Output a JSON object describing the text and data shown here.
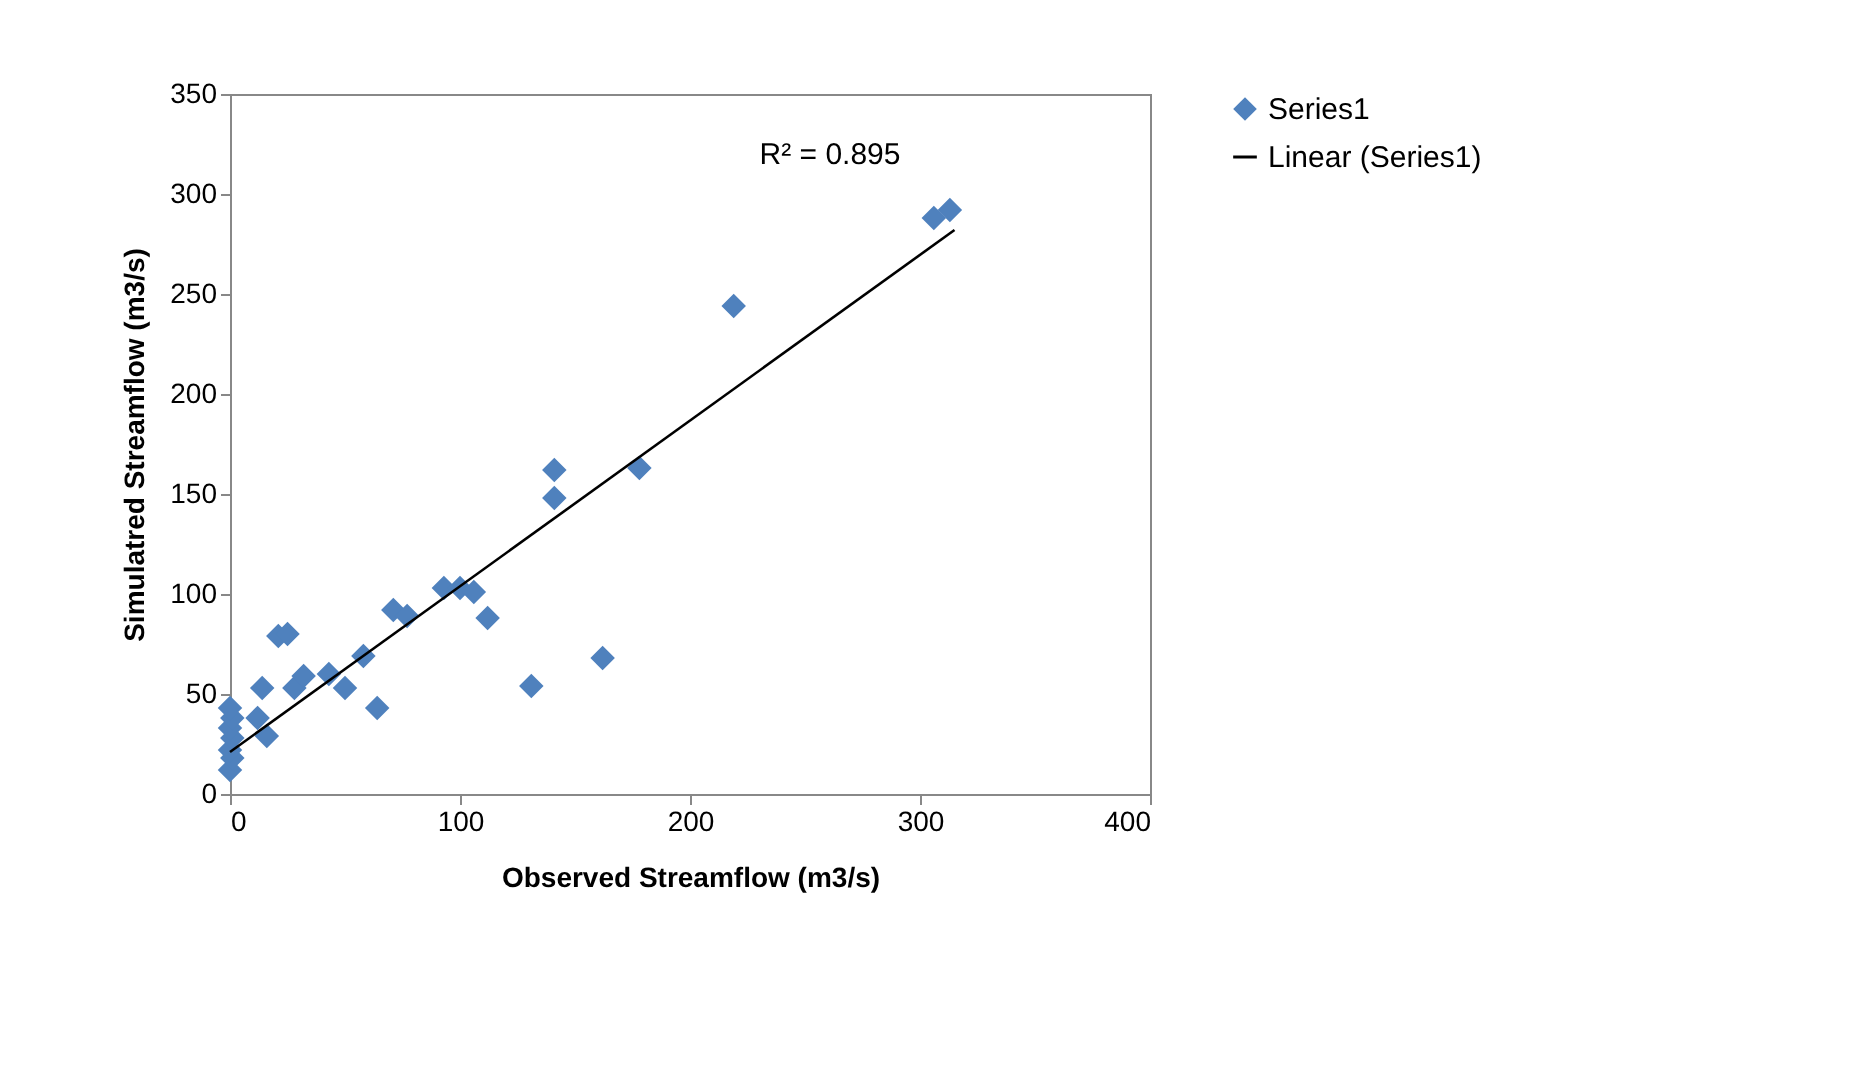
{
  "chart_data": {
    "type": "scatter",
    "xlabel": "Observed Streamflow (m3/s)",
    "ylabel": "Simulatred Streamflow (m3/s)",
    "xlim": [
      0,
      400
    ],
    "xticks": [
      0,
      100,
      200,
      300,
      400
    ],
    "ylim": [
      0,
      350
    ],
    "yticks": [
      0,
      50,
      100,
      150,
      200,
      250,
      300,
      350
    ],
    "grid": false,
    "legend": "right",
    "annotations": [
      "R² = 0.895"
    ],
    "series": [
      {
        "name": "Series1",
        "marker": "diamond",
        "color": "#4f81bd",
        "x": [
          0,
          1,
          0,
          1,
          0,
          1,
          0,
          12,
          14,
          16,
          21,
          25,
          28,
          32,
          43,
          50,
          58,
          64,
          71,
          77,
          93,
          100,
          106,
          112,
          131,
          141,
          141,
          162,
          178,
          219,
          306,
          313
        ],
        "values": [
          12,
          18,
          22,
          28,
          33,
          38,
          43,
          38,
          53,
          29,
          79,
          80,
          53,
          59,
          60,
          53,
          69,
          43,
          92,
          89,
          103,
          103,
          101,
          88,
          54,
          148,
          162,
          68,
          163,
          244,
          288,
          292
        ]
      },
      {
        "name": "Linear (Series1)",
        "type": "line",
        "marker": "none",
        "color": "#000000",
        "line_style": "solid",
        "x": [
          0,
          315
        ],
        "values": [
          21,
          282
        ]
      }
    ]
  }
}
